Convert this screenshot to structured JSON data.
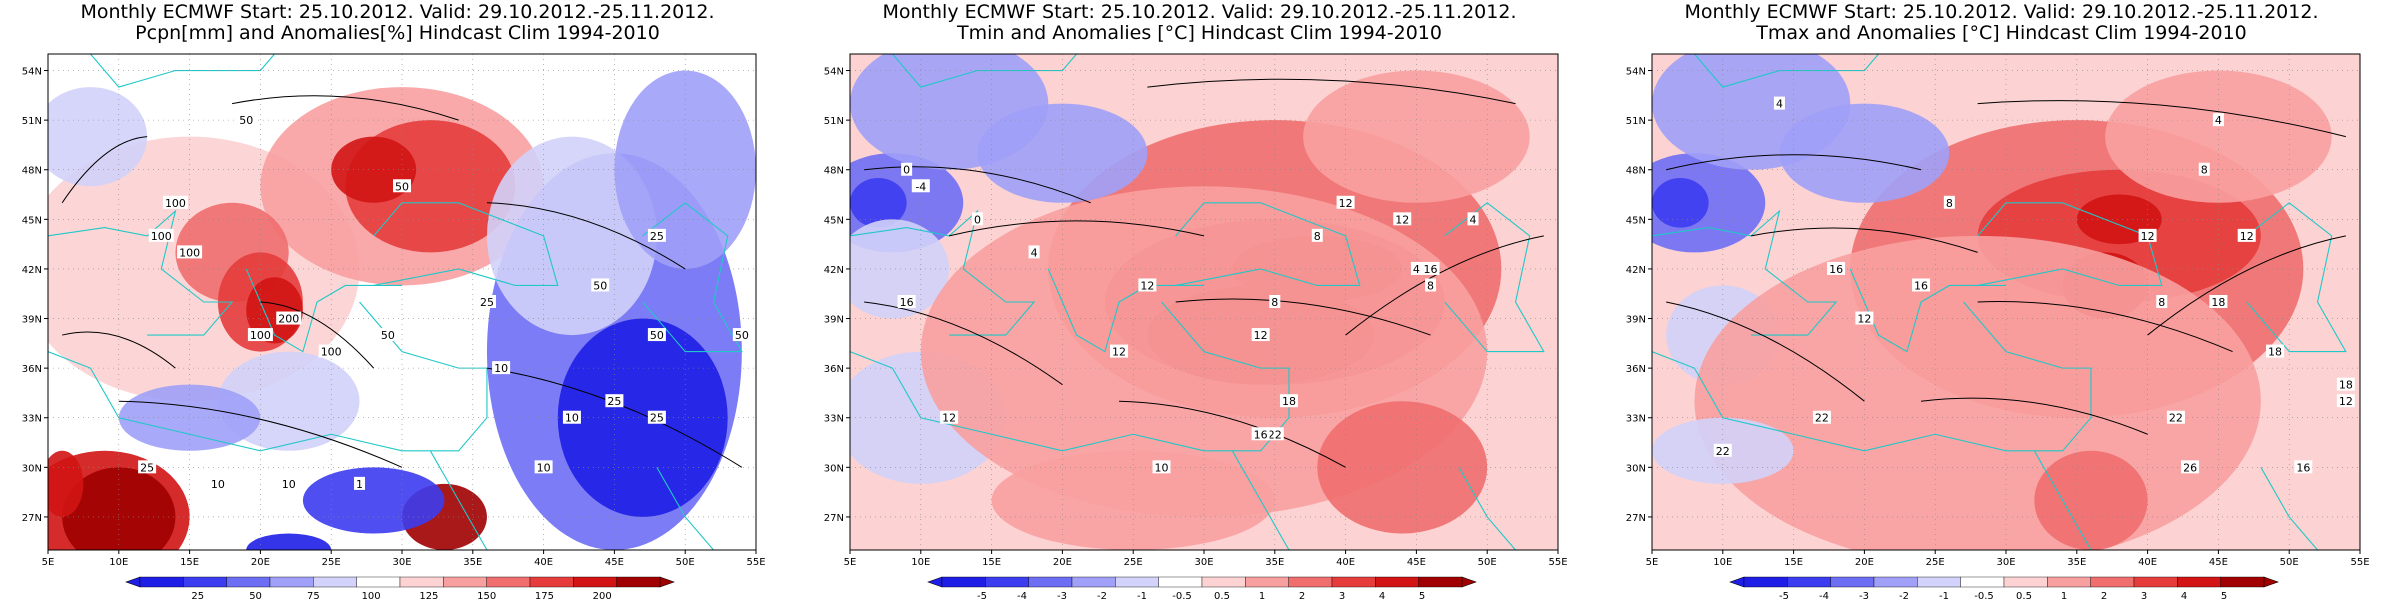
{
  "panels": [
    {
      "title_line1": "Monthly ECMWF Start: 25.10.2012. Valid: 29.10.2012.-25.11.2012.",
      "title_line2": "Pcpn[mm] and Anomalies[%] Hindcast Clim 1994-2010",
      "colorbar_labels": [
        "25",
        "50",
        "75",
        "100",
        "125",
        "150",
        "175",
        "200"
      ],
      "colors": [
        "#1e1ee6",
        "#3c3cf0",
        "#6e6ef5",
        "#a0a0f8",
        "#d2d2fa",
        "#ffffff",
        "#fcd2d2",
        "#f8a0a0",
        "#f06e6e",
        "#e63c3c",
        "#d21414",
        "#a00000"
      ],
      "contour_labels": [
        "50",
        "100",
        "100",
        "100",
        "100",
        "50",
        "25",
        "50",
        "50",
        "50",
        "25",
        "25",
        "25",
        "10",
        "10",
        "10",
        "25",
        "10",
        "1",
        "100",
        "200",
        "50",
        "10"
      ]
    },
    {
      "title_line1": "Monthly ECMWF Start: 25.10.2012. Valid: 29.10.2012.-25.11.2012.",
      "title_line2": "Tmin and Anomalies [°C] Hindcast Clim 1994-2010",
      "colorbar_labels": [
        "-5",
        "-4",
        "-3",
        "-2",
        "-1",
        "-0.5",
        "0.5",
        "1",
        "2",
        "3",
        "4",
        "5"
      ],
      "colors": [
        "#1e1ee6",
        "#3c3cf0",
        "#6e6ef5",
        "#a0a0f8",
        "#d2d2fa",
        "#ffffff",
        "#fcd2d2",
        "#f8a0a0",
        "#f06e6e",
        "#e63c3c",
        "#d21414",
        "#a00000"
      ],
      "contour_labels": [
        "0",
        "-4",
        "0",
        "4",
        "8",
        "12",
        "12",
        "4",
        "8",
        "4",
        "12",
        "16",
        "12",
        "8",
        "16",
        "12",
        "18",
        "22",
        "16",
        "12",
        "10"
      ]
    },
    {
      "title_line1": "Monthly ECMWF Start: 25.10.2012. Valid: 29.10.2012.-25.11.2012.",
      "title_line2": "Tmax and Anomalies [°C] Hindcast Clim 1994-2010",
      "colorbar_labels": [
        "-5",
        "-4",
        "-3",
        "-2",
        "-1",
        "-0.5",
        "0.5",
        "1",
        "2",
        "3",
        "4",
        "5"
      ],
      "colors": [
        "#1e1ee6",
        "#3c3cf0",
        "#6e6ef5",
        "#a0a0f8",
        "#d2d2fa",
        "#ffffff",
        "#fcd2d2",
        "#f8a0a0",
        "#f06e6e",
        "#e63c3c",
        "#d21414",
        "#a00000"
      ],
      "contour_labels": [
        "4",
        "4",
        "8",
        "8",
        "12",
        "12",
        "16",
        "16",
        "18",
        "12",
        "8",
        "18",
        "22",
        "22",
        "26",
        "16",
        "22",
        "18",
        "12"
      ]
    }
  ],
  "lat_labels": [
    "54N",
    "51N",
    "48N",
    "45N",
    "42N",
    "39N",
    "36N",
    "33N",
    "30N",
    "27N"
  ],
  "lon_labels": [
    "5E",
    "10E",
    "15E",
    "20E",
    "25E",
    "30E",
    "35E",
    "40E",
    "45E",
    "50E",
    "55E"
  ],
  "map_extent": {
    "lon": [
      5,
      55
    ],
    "lat": [
      25,
      55
    ]
  }
}
